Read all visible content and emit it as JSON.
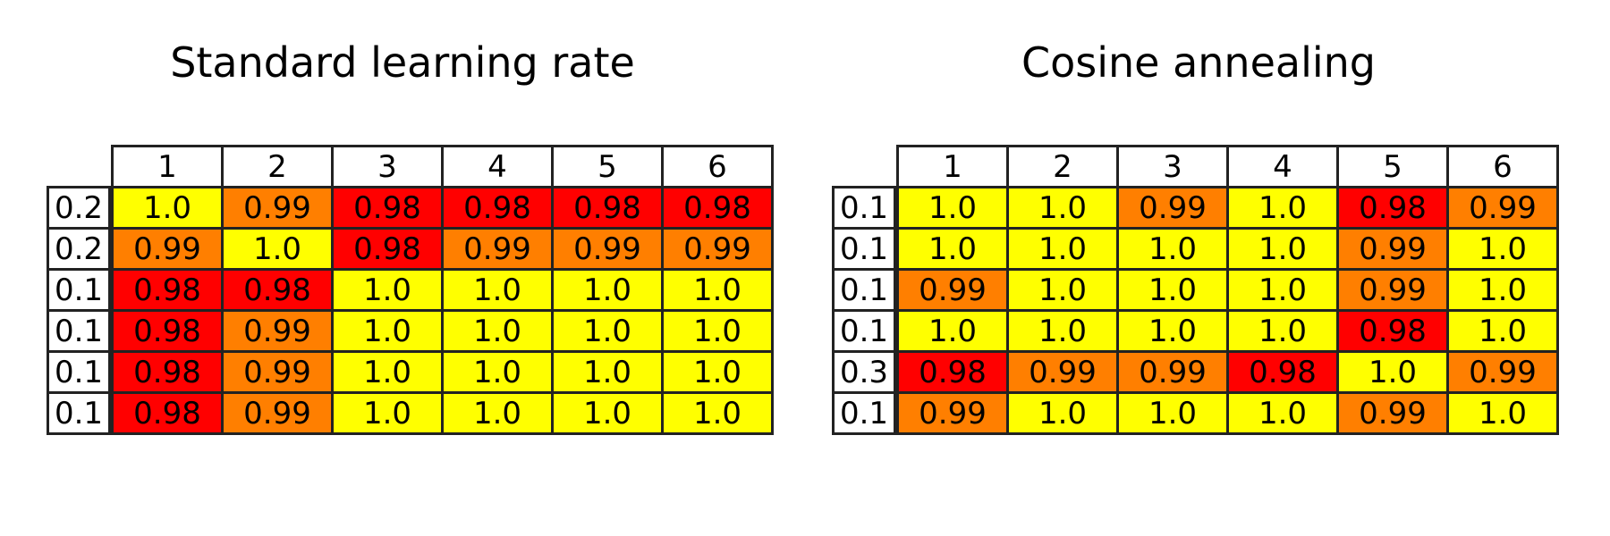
{
  "chart_data": [
    {
      "type": "table",
      "title": "Standard learning rate",
      "column_labels": [
        "1",
        "2",
        "3",
        "4",
        "5",
        "6"
      ],
      "row_labels": [
        "0.2",
        "0.2",
        "0.1",
        "0.1",
        "0.1",
        "0.1"
      ],
      "values": [
        [
          "1.0",
          "0.99",
          "0.98",
          "0.98",
          "0.98",
          "0.98"
        ],
        [
          "0.99",
          "1.0",
          "0.98",
          "0.99",
          "0.99",
          "0.99"
        ],
        [
          "0.98",
          "0.98",
          "1.0",
          "1.0",
          "1.0",
          "1.0"
        ],
        [
          "0.98",
          "0.99",
          "1.0",
          "1.0",
          "1.0",
          "1.0"
        ],
        [
          "0.98",
          "0.99",
          "1.0",
          "1.0",
          "1.0",
          "1.0"
        ],
        [
          "0.98",
          "0.99",
          "1.0",
          "1.0",
          "1.0",
          "1.0"
        ]
      ]
    },
    {
      "type": "table",
      "title": "Cosine annealing",
      "column_labels": [
        "1",
        "2",
        "3",
        "4",
        "5",
        "6"
      ],
      "row_labels": [
        "0.1",
        "0.1",
        "0.1",
        "0.1",
        "0.3",
        "0.1"
      ],
      "values": [
        [
          "1.0",
          "1.0",
          "0.99",
          "1.0",
          "0.98",
          "0.99"
        ],
        [
          "1.0",
          "1.0",
          "1.0",
          "1.0",
          "0.99",
          "1.0"
        ],
        [
          "0.99",
          "1.0",
          "1.0",
          "1.0",
          "0.99",
          "1.0"
        ],
        [
          "1.0",
          "1.0",
          "1.0",
          "1.0",
          "0.98",
          "1.0"
        ],
        [
          "0.98",
          "0.99",
          "0.99",
          "0.98",
          "1.0",
          "0.99"
        ],
        [
          "0.99",
          "1.0",
          "1.0",
          "1.0",
          "0.99",
          "1.0"
        ]
      ]
    }
  ],
  "colors": {
    "1.0": "#ffff00",
    "0.99": "#ff7f00",
    "0.98": "#ff0000",
    "header": "#ffffff",
    "border": "#222222"
  }
}
